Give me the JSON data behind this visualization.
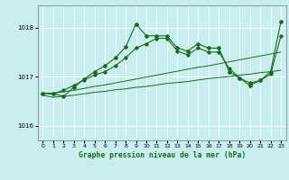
{
  "title": "Graphe pression niveau de la mer (hPa)",
  "bg_color": "#c8eef0",
  "grid_color": "#ffffff",
  "line_color": "#1a6b1a",
  "ylim": [
    1015.7,
    1018.45
  ],
  "yticks": [
    1016,
    1017,
    1018
  ],
  "xlim": [
    -0.5,
    23.5
  ],
  "xticks": [
    0,
    1,
    2,
    3,
    4,
    5,
    6,
    7,
    8,
    9,
    10,
    11,
    12,
    13,
    14,
    15,
    16,
    17,
    18,
    19,
    20,
    21,
    22,
    23
  ],
  "series": {
    "line1": [
      1016.66,
      1016.65,
      1016.6,
      1016.78,
      1016.95,
      1017.1,
      1017.22,
      1017.38,
      1017.6,
      1018.07,
      1017.83,
      1017.83,
      1017.83,
      1017.58,
      1017.52,
      1017.67,
      1017.58,
      1017.58,
      1017.1,
      1016.97,
      1016.82,
      1016.92,
      1017.1,
      1018.12
    ],
    "line2": [
      1016.66,
      1016.65,
      1016.72,
      1016.82,
      1016.93,
      1017.03,
      1017.1,
      1017.22,
      1017.38,
      1017.58,
      1017.67,
      1017.78,
      1017.78,
      1017.52,
      1017.44,
      1017.58,
      1017.5,
      1017.5,
      1017.17,
      1016.97,
      1016.87,
      1016.92,
      1017.05,
      1017.83
    ],
    "line3": [
      1016.66,
      1016.66,
      1016.69,
      1016.72,
      1016.76,
      1016.8,
      1016.83,
      1016.87,
      1016.91,
      1016.95,
      1016.99,
      1017.03,
      1017.07,
      1017.11,
      1017.15,
      1017.19,
      1017.22,
      1017.26,
      1017.3,
      1017.34,
      1017.38,
      1017.42,
      1017.46,
      1017.5
    ],
    "line4": [
      1016.62,
      1016.58,
      1016.6,
      1016.62,
      1016.65,
      1016.68,
      1016.7,
      1016.73,
      1016.75,
      1016.78,
      1016.8,
      1016.83,
      1016.86,
      1016.88,
      1016.9,
      1016.93,
      1016.96,
      1016.98,
      1017.0,
      1017.03,
      1017.05,
      1017.08,
      1017.1,
      1017.13
    ]
  }
}
